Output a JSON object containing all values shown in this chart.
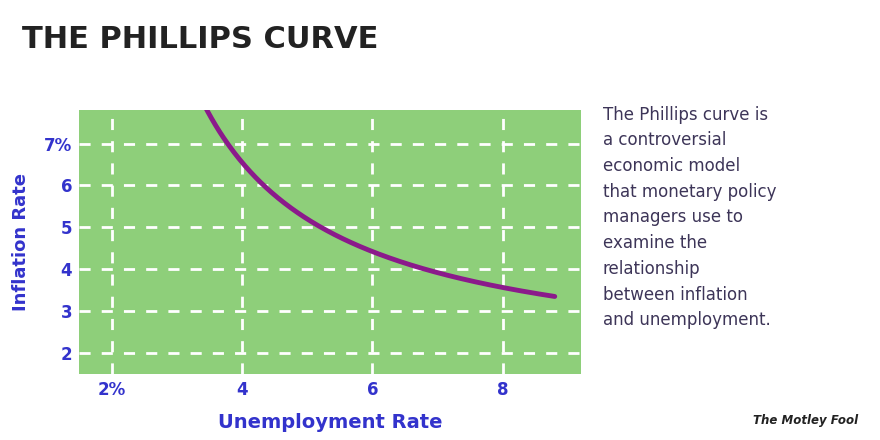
{
  "title": "THE PHILLIPS CURVE",
  "title_color": "#222222",
  "title_fontsize": 22,
  "title_fontweight": "bold",
  "bg_color_top": "#ffffff",
  "bg_color_plot": "#8ecf7a",
  "curve_color": "#8B1A8B",
  "curve_linewidth": 3.5,
  "xlabel": "Unemployment Rate",
  "ylabel": "Inflation Rate",
  "xlabel_color": "#3333cc",
  "ylabel_color": "#3333cc",
  "xlabel_fontsize": 14,
  "ylabel_fontsize": 13,
  "xtick_labels": [
    "2%",
    "4",
    "6",
    "8"
  ],
  "xtick_positions": [
    2,
    4,
    6,
    8
  ],
  "ytick_labels": [
    "7%",
    "6",
    "5",
    "4",
    "3",
    "2"
  ],
  "ytick_positions": [
    7,
    6,
    5,
    4,
    3,
    2
  ],
  "tick_color": "#3333cc",
  "tick_fontsize": 12,
  "xlim": [
    1.5,
    9.2
  ],
  "ylim": [
    1.5,
    7.8
  ],
  "grid_color": "#ffffff",
  "grid_linewidth": 2.0,
  "annotation_text": "The Phillips curve is\na controversial\neconomic model\nthat monetary policy\nmanagers use to\nexamine the\nrelationship\nbetween inflation\nand unemployment.",
  "annotation_fontsize": 12,
  "annotation_color": "#3d3558",
  "motley_fool_text": "The Motley Fool",
  "curve_x_start": 2.72,
  "curve_x_end": 8.8,
  "curve_a": 13.5,
  "curve_b": 1.3,
  "curve_c": 1.55
}
